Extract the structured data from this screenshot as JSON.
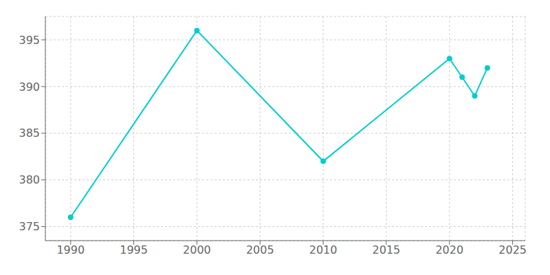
{
  "chart_data": {
    "type": "line",
    "x": [
      1990,
      2000,
      2010,
      2020,
      2021,
      2022,
      2023
    ],
    "values": [
      376,
      396,
      382,
      393,
      391,
      389,
      392
    ],
    "color": "#00CDCD",
    "xlim": [
      1988,
      2026
    ],
    "ylim": [
      373.5,
      397.5
    ],
    "xticks": [
      1990,
      1995,
      2000,
      2005,
      2010,
      2015,
      2020,
      2025
    ],
    "yticks": [
      375,
      380,
      385,
      390,
      395
    ],
    "grid": true,
    "marker": "circle"
  }
}
